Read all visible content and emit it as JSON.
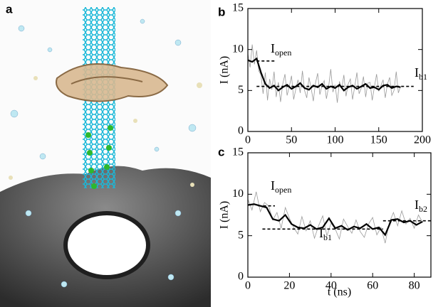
{
  "image_panel": {
    "label": "a"
  },
  "chart_data": [
    {
      "type": "line",
      "panel_label": "b",
      "ylabel": "I (nA)",
      "xlim": [
        0,
        200
      ],
      "xticks": [
        0,
        50,
        100,
        150,
        200
      ],
      "ylim": [
        0,
        15
      ],
      "yticks": [
        0,
        5,
        10,
        15
      ],
      "series": [
        {
          "color": "#9a9a9a",
          "x": [
            0,
            2.5,
            5,
            7.5,
            10,
            12.5,
            15,
            17.5,
            20,
            22.5,
            25,
            27.5,
            30,
            32.5,
            35,
            37.5,
            40,
            42.5,
            45,
            47.5,
            50,
            52.5,
            55,
            57.5,
            60,
            62.5,
            65,
            67.5,
            70,
            72.5,
            75,
            77.5,
            80,
            82.5,
            85,
            87.5,
            90,
            92.5,
            95,
            97.5,
            100,
            102.5,
            105,
            107.5,
            110,
            112.5,
            115,
            117.5,
            120,
            122.5,
            125,
            127.5,
            130,
            132.5,
            135,
            137.5,
            140,
            142.5,
            145,
            147.5,
            150,
            152.5,
            155,
            157.5,
            160,
            162.5,
            165,
            167.5,
            170,
            172.5,
            175
          ],
          "values": [
            9.5,
            7.8,
            10.6,
            8.2,
            9.9,
            7.4,
            6.9,
            4.6,
            7.2,
            3.8,
            6.4,
            5.1,
            7.3,
            4.2,
            6.0,
            3.6,
            5.8,
            7.0,
            4.4,
            5.5,
            6.8,
            3.9,
            5.2,
            6.3,
            4.7,
            7.4,
            5.0,
            4.1,
            6.6,
            5.3,
            3.7,
            5.9,
            7.1,
            4.5,
            5.6,
            6.2,
            4.0,
            5.4,
            7.6,
            4.8,
            5.7,
            3.5,
            6.1,
            5.2,
            6.9,
            4.3,
            5.8,
            6.4,
            3.9,
            5.5,
            7.2,
            4.6,
            5.3,
            6.7,
            4.2,
            5.9,
            6.0,
            3.8,
            5.4,
            7.0,
            4.9,
            5.6,
            6.3,
            4.1,
            5.8,
            6.6,
            4.4,
            5.0,
            7.3,
            4.7,
            5.5
          ]
        },
        {
          "color": "#000000",
          "x": [
            0,
            5,
            10,
            15,
            20,
            25,
            30,
            35,
            40,
            45,
            50,
            55,
            60,
            65,
            70,
            75,
            80,
            85,
            90,
            95,
            100,
            105,
            110,
            115,
            120,
            125,
            130,
            135,
            140,
            145,
            150,
            155,
            160,
            165,
            170,
            175
          ],
          "values": [
            8.7,
            8.5,
            8.9,
            7.2,
            5.8,
            5.3,
            5.6,
            5.0,
            5.4,
            5.7,
            5.2,
            5.5,
            5.9,
            5.3,
            5.1,
            5.6,
            5.4,
            5.8,
            5.2,
            5.5,
            5.3,
            5.7,
            5.0,
            5.4,
            5.6,
            5.2,
            5.5,
            5.8,
            5.3,
            5.4,
            5.1,
            5.6,
            5.7,
            5.3,
            5.5,
            5.4
          ]
        }
      ],
      "reference_lines": [
        {
          "y": 8.6,
          "x": [
            10,
            32
          ]
        },
        {
          "y": 5.5,
          "x": [
            10,
            190
          ]
        }
      ],
      "annotations": [
        {
          "text": "I",
          "sub": "open"
        },
        {
          "text": "I",
          "sub": "b1"
        }
      ]
    },
    {
      "type": "line",
      "panel_label": "c",
      "xlabel": "t (ns)",
      "ylabel": "I (nA)",
      "xlim": [
        0,
        88
      ],
      "xticks": [
        0,
        20,
        40,
        60,
        80
      ],
      "ylim": [
        0,
        15
      ],
      "yticks": [
        0,
        5,
        10,
        15
      ],
      "series": [
        {
          "color": "#9a9a9a",
          "x": [
            0,
            2,
            4,
            6,
            8,
            10,
            12,
            14,
            16,
            18,
            20,
            22,
            24,
            26,
            28,
            30,
            32,
            34,
            36,
            38,
            40,
            42,
            44,
            46,
            48,
            50,
            52,
            54,
            56,
            58,
            60,
            62,
            64,
            66,
            68,
            70,
            72,
            74,
            76,
            78,
            80,
            82,
            84
          ],
          "values": [
            9.4,
            8.1,
            10.3,
            7.9,
            9.0,
            8.6,
            6.9,
            7.8,
            5.9,
            8.4,
            7.1,
            6.0,
            5.2,
            7.3,
            5.6,
            6.8,
            4.7,
            6.2,
            7.4,
            5.0,
            6.5,
            5.8,
            4.6,
            7.0,
            6.1,
            5.3,
            6.9,
            5.5,
            4.8,
            6.4,
            7.2,
            5.1,
            6.0,
            4.1,
            6.6,
            7.8,
            6.2,
            8.0,
            6.4,
            7.1,
            5.9,
            7.5,
            6.6
          ]
        },
        {
          "color": "#000000",
          "x": [
            0,
            3,
            6,
            9,
            12,
            15,
            18,
            21,
            24,
            27,
            30,
            33,
            36,
            39,
            42,
            45,
            48,
            51,
            54,
            57,
            60,
            63,
            66,
            69,
            72,
            75,
            78,
            81,
            84
          ],
          "values": [
            8.7,
            8.8,
            8.6,
            8.4,
            7.0,
            6.8,
            7.5,
            6.4,
            6.0,
            5.9,
            6.3,
            5.8,
            6.0,
            7.1,
            5.9,
            6.2,
            5.7,
            6.1,
            5.9,
            6.4,
            5.8,
            6.0,
            5.1,
            6.9,
            7.0,
            6.6,
            6.8,
            6.3,
            6.7
          ]
        }
      ],
      "reference_lines": [
        {
          "y": 8.6,
          "x": [
            5,
            13
          ]
        },
        {
          "y": 5.8,
          "x": [
            7,
            65
          ]
        },
        {
          "y": 6.8,
          "x": [
            65,
            88
          ]
        }
      ],
      "annotations": [
        {
          "text": "I",
          "sub": "open"
        },
        {
          "text": "I",
          "sub": "b1"
        },
        {
          "text": "I",
          "sub": "b2"
        }
      ]
    }
  ]
}
